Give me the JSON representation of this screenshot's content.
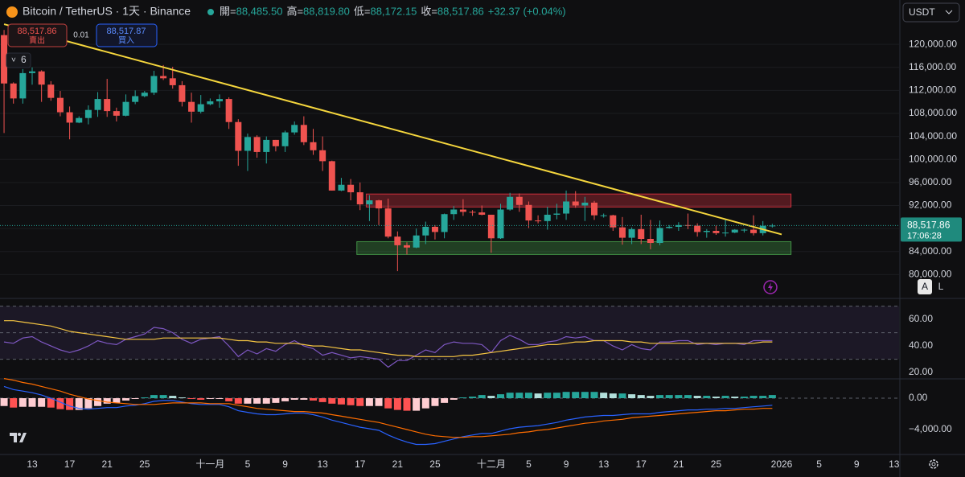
{
  "header": {
    "title": "Bitcoin / TetherUS · 1天 · Binance",
    "ohlc": [
      {
        "label": "開=",
        "value": "88,485.50"
      },
      {
        "label": "高=",
        "value": "88,819.80"
      },
      {
        "label": "低=",
        "value": "88,172.15"
      },
      {
        "label": "收=",
        "value": "88,517.86"
      }
    ],
    "change": "+32.37 (+0.04%)"
  },
  "order_panel": {
    "sell_price": "88,517.86",
    "sell_label": "賣出",
    "quantity": "0.01",
    "buy_price": "88,517.87",
    "buy_label": "買入"
  },
  "indicator_count": "6",
  "currency": "USDT",
  "scale_buttons": [
    "A",
    "L"
  ],
  "chart_data": [
    {
      "type": "candlestick",
      "up_color": "#26a69a",
      "down_color": "#ef5350",
      "categories": [
        null,
        null,
        null,
        "13",
        null,
        null,
        null,
        "17",
        null,
        null,
        null,
        "21",
        null,
        null,
        null,
        "25",
        null,
        null,
        null,
        null,
        null,
        null,
        "十一月",
        null,
        null,
        null,
        "5",
        null,
        null,
        null,
        "9",
        null,
        null,
        null,
        "13",
        null,
        null,
        null,
        "17",
        null,
        null,
        null,
        "21",
        null,
        null,
        null,
        "25",
        null,
        null,
        null,
        null,
        null,
        "十二月",
        null,
        null,
        null,
        "5",
        null,
        null,
        null,
        "9",
        null,
        null,
        null,
        "13",
        null,
        null,
        null,
        "17",
        null,
        null,
        null,
        "21",
        null,
        null,
        null,
        "25",
        null,
        null,
        null,
        null,
        null,
        null,
        "2026",
        null,
        null,
        null,
        "5",
        null,
        null,
        null,
        "9",
        null,
        null,
        null,
        "13"
      ],
      "open": [
        121600,
        113200,
        110600,
        115000,
        115300,
        113000,
        110700,
        108200,
        106400,
        107200,
        108600,
        110500,
        108400,
        107600,
        110000,
        111000,
        111600,
        114500,
        114100,
        112900,
        110000,
        108300,
        109600,
        110100,
        110500,
        106500,
        101500,
        103900,
        101300,
        103400,
        102300,
        104700,
        106000,
        103000,
        101600,
        99700,
        94600,
        95600,
        94300,
        92200,
        92900,
        91500,
        86600,
        85100,
        84700,
        86800,
        88300,
        87400,
        90500,
        91300,
        90900,
        90800,
        90400,
        86300,
        91300,
        93500,
        92100,
        89400,
        89300,
        90400,
        90600,
        92700,
        92000,
        92500,
        90300,
        90300,
        88200,
        86400,
        87900,
        86200,
        85500,
        88100,
        88300,
        88600,
        88500,
        87400,
        87600,
        87200,
        87300,
        87800,
        87800,
        87200,
        88485.5,
        null,
        null,
        null,
        null,
        null,
        null,
        null,
        null,
        null,
        null,
        null,
        null,
        null
      ],
      "high": [
        122500,
        113400,
        115700,
        116000,
        115500,
        113600,
        111900,
        109200,
        107500,
        109400,
        111700,
        114000,
        109000,
        111300,
        112000,
        111900,
        115400,
        116400,
        116100,
        113600,
        111600,
        111200,
        110600,
        111300,
        110800,
        107000,
        104500,
        104200,
        104000,
        103400,
        105000,
        106600,
        107500,
        105300,
        104000,
        99800,
        96800,
        96600,
        96000,
        93800,
        93000,
        93200,
        87500,
        85600,
        88000,
        89200,
        88600,
        90600,
        91900,
        93100,
        91200,
        92000,
        90400,
        92300,
        94200,
        94100,
        92700,
        90300,
        91800,
        92300,
        94600,
        94500,
        93500,
        92800,
        90600,
        90400,
        90000,
        88200,
        90400,
        89500,
        89400,
        88600,
        89100,
        90600,
        88900,
        87900,
        88500,
        89500,
        87900,
        88000,
        90300,
        89300,
        88819.8,
        null,
        null,
        null,
        null,
        null,
        null,
        null,
        null,
        null,
        null,
        null,
        null,
        null
      ],
      "low": [
        104600,
        109700,
        109700,
        113000,
        110000,
        110200,
        107500,
        103500,
        106300,
        106100,
        107400,
        107400,
        106600,
        107500,
        109600,
        110800,
        111200,
        113800,
        112300,
        109200,
        106400,
        108000,
        109400,
        109000,
        105300,
        98900,
        98000,
        100300,
        99300,
        101400,
        101300,
        104300,
        102500,
        100800,
        98000,
        94600,
        94500,
        92900,
        91200,
        89300,
        88600,
        86300,
        80600,
        83500,
        84600,
        85300,
        86100,
        86300,
        89500,
        90200,
        90200,
        90300,
        83800,
        86200,
        91100,
        90900,
        88100,
        88900,
        87800,
        89600,
        89500,
        91600,
        89300,
        89500,
        89900,
        87600,
        85200,
        85300,
        85300,
        84400,
        85100,
        88000,
        87600,
        87900,
        86600,
        86400,
        86900,
        86600,
        87200,
        87300,
        86800,
        86800,
        88172.15,
        null,
        null,
        null,
        null,
        null,
        null,
        null,
        null,
        null,
        null,
        null,
        null,
        null
      ],
      "close": [
        113200,
        110600,
        115000,
        115300,
        113000,
        110700,
        108200,
        106400,
        107200,
        108600,
        110500,
        108400,
        107600,
        110000,
        111000,
        111600,
        114500,
        114100,
        112900,
        110000,
        108300,
        109600,
        110100,
        110500,
        106500,
        101500,
        103900,
        101300,
        103400,
        102300,
        104700,
        106000,
        103000,
        101600,
        99700,
        94600,
        95600,
        94300,
        92200,
        92900,
        91500,
        86600,
        85100,
        84700,
        86800,
        88300,
        87400,
        90500,
        91300,
        90900,
        90800,
        90400,
        86300,
        91300,
        93500,
        92100,
        89400,
        89300,
        90400,
        90600,
        92700,
        92000,
        92500,
        90300,
        90300,
        88200,
        86400,
        87900,
        86200,
        85500,
        88100,
        88300,
        88600,
        88500,
        87400,
        87600,
        87200,
        87300,
        87800,
        87800,
        87200,
        88485.5,
        88517.86,
        null,
        null,
        null,
        null,
        null,
        null,
        null,
        null,
        null,
        null,
        null,
        null,
        null
      ],
      "ylim": [
        76000,
        127700
      ],
      "yticks": [
        {
          "value": 80000,
          "label": "80,000.00"
        },
        {
          "value": 84000,
          "label": "84,000.00"
        },
        {
          "value": 88000,
          "label": "88,000.00"
        },
        {
          "value": 92000,
          "label": "92,000.00"
        },
        {
          "value": 96000,
          "label": "96,000.00"
        },
        {
          "value": 100000,
          "label": "100,000.00"
        },
        {
          "value": 104000,
          "label": "104,000.00"
        },
        {
          "value": 108000,
          "label": "108,000.00"
        },
        {
          "value": 112000,
          "label": "112,000.00"
        },
        {
          "value": 116000,
          "label": "116,000.00"
        },
        {
          "value": 120000,
          "label": "120,000.00"
        }
      ],
      "last_price": {
        "value": 88517.86,
        "label": "88,517.86",
        "time": "17:06:28"
      },
      "trendline": {
        "color": "#f5d63d",
        "points": [
          {
            "index": 0,
            "price": 123500
          },
          {
            "index": 83,
            "price": 86980
          }
        ]
      },
      "zones": [
        {
          "from": 39,
          "to": 84,
          "top": 94000,
          "bottom": 91740,
          "color": "#f23645"
        },
        {
          "from": 38,
          "to": 84,
          "top": 85720,
          "bottom": 83490,
          "color": "#4caf50"
        }
      ]
    },
    {
      "type": "line",
      "ylim": [
        15.8,
        75.2
      ],
      "levels": [
        70,
        50,
        30
      ],
      "yticks": [
        {
          "value": 20,
          "label": "20.00"
        },
        {
          "value": 40,
          "label": "40.00"
        },
        {
          "value": 60,
          "label": "60.00"
        }
      ],
      "series": [
        {
          "name": "RSI",
          "color": "#7e57c2",
          "values": [
            43,
            42,
            46,
            47,
            43,
            40,
            37,
            35,
            37,
            40,
            44,
            42,
            41,
            45,
            47,
            49,
            54,
            53,
            50,
            45,
            42,
            45,
            46,
            47,
            40,
            32,
            37,
            34,
            38,
            36,
            41,
            44,
            40,
            38,
            33,
            35,
            33,
            31,
            32,
            31,
            30,
            24,
            29,
            29,
            33,
            37,
            35,
            41,
            43,
            42,
            42,
            41,
            35,
            44,
            48,
            45,
            41,
            41,
            43,
            44,
            47,
            46,
            47,
            44,
            44,
            40,
            37,
            41,
            38,
            37,
            43,
            43,
            44,
            44,
            41,
            42,
            41,
            42,
            42,
            41,
            44,
            44,
            44,
            null,
            null,
            null,
            null,
            null,
            null,
            null,
            null,
            null,
            null,
            null,
            null,
            null
          ]
        },
        {
          "name": "RSI MA",
          "color": "#f5c542",
          "values": [
            59,
            59,
            58,
            57,
            56,
            55,
            53,
            51,
            50,
            49,
            48,
            47,
            46,
            45,
            45,
            45,
            45,
            46,
            46,
            46,
            46,
            46,
            46,
            46,
            45,
            44,
            44,
            43,
            43,
            42,
            42,
            42,
            41,
            40,
            40,
            39,
            38,
            37,
            37,
            36,
            35,
            34,
            33,
            33,
            32,
            32,
            32,
            32,
            32,
            33,
            33,
            34,
            35,
            36,
            37,
            38,
            39,
            40,
            41,
            41,
            42,
            43,
            43,
            44,
            44,
            44,
            44,
            43,
            43,
            42,
            42,
            42,
            42,
            42,
            42,
            42,
            42,
            42,
            42,
            42,
            42,
            43,
            43,
            null,
            null,
            null,
            null,
            null,
            null,
            null,
            null,
            null,
            null,
            null,
            null,
            null
          ]
        }
      ]
    },
    {
      "type": "macd",
      "ylim": [
        -7180,
        2360
      ],
      "yticks": [
        {
          "value": -4000,
          "label": "−4,000.00"
        },
        {
          "value": 0,
          "label": "0.00"
        }
      ],
      "series": [
        {
          "name": "Histogram",
          "colors": [
            "#26a69a",
            "#b2dfdb",
            "#ff5252",
            "#ffcdd2"
          ],
          "values": [
            -1000,
            -1200,
            -1100,
            -1100,
            -1100,
            -1200,
            -1400,
            -1500,
            -1500,
            -1300,
            -1000,
            -700,
            -600,
            -300,
            -100,
            100,
            400,
            400,
            300,
            100,
            -100,
            -200,
            -100,
            -100,
            -400,
            -700,
            -700,
            -700,
            -700,
            -600,
            -400,
            -200,
            -200,
            -300,
            -500,
            -700,
            -800,
            -900,
            -1000,
            -1000,
            -1000,
            -1300,
            -1500,
            -1600,
            -1600,
            -1300,
            -1000,
            -600,
            -200,
            100,
            200,
            400,
            300,
            500,
            700,
            700,
            700,
            600,
            700,
            700,
            800,
            800,
            800,
            800,
            700,
            600,
            600,
            500,
            400,
            300,
            400,
            400,
            400,
            400,
            300,
            300,
            200,
            300,
            200,
            200,
            300,
            300,
            400,
            null,
            null,
            null,
            null,
            null,
            null,
            null,
            null,
            null,
            null,
            null,
            null,
            null
          ]
        },
        {
          "name": "MACD",
          "color": "#2962ff",
          "values": [
            1500,
            1100,
            900,
            700,
            400,
            0,
            -500,
            -1000,
            -1300,
            -1400,
            -1300,
            -1200,
            -1200,
            -1000,
            -900,
            -700,
            -400,
            -300,
            -300,
            -500,
            -700,
            -800,
            -800,
            -800,
            -1100,
            -1600,
            -1800,
            -2000,
            -2100,
            -2100,
            -2000,
            -1900,
            -1900,
            -2100,
            -2400,
            -2800,
            -3100,
            -3400,
            -3700,
            -3900,
            -4100,
            -4700,
            -5200,
            -5600,
            -5900,
            -5900,
            -5800,
            -5500,
            -5200,
            -4900,
            -4700,
            -4500,
            -4500,
            -4200,
            -3900,
            -3700,
            -3600,
            -3500,
            -3300,
            -3100,
            -2800,
            -2600,
            -2400,
            -2300,
            -2200,
            -2200,
            -2100,
            -2000,
            -2000,
            -2000,
            -1800,
            -1700,
            -1600,
            -1500,
            -1500,
            -1400,
            -1400,
            -1300,
            -1300,
            -1200,
            -1100,
            -1000,
            -900,
            null,
            null,
            null,
            null,
            null,
            null,
            null,
            null,
            null,
            null,
            null,
            null,
            null
          ]
        },
        {
          "name": "Signal",
          "color": "#ff6d00",
          "values": [
            2500,
            2300,
            2000,
            1800,
            1500,
            1200,
            900,
            500,
            200,
            -100,
            -300,
            -500,
            -600,
            -700,
            -800,
            -800,
            -800,
            -700,
            -600,
            -600,
            -600,
            -600,
            -700,
            -700,
            -700,
            -900,
            -1100,
            -1300,
            -1400,
            -1500,
            -1600,
            -1700,
            -1700,
            -1800,
            -1900,
            -2100,
            -2300,
            -2500,
            -2700,
            -2900,
            -3100,
            -3400,
            -3700,
            -4000,
            -4300,
            -4600,
            -4800,
            -4900,
            -5000,
            -5000,
            -4900,
            -4900,
            -4800,
            -4700,
            -4600,
            -4400,
            -4300,
            -4100,
            -4000,
            -3800,
            -3600,
            -3400,
            -3200,
            -3100,
            -2900,
            -2800,
            -2700,
            -2500,
            -2400,
            -2300,
            -2200,
            -2100,
            -2000,
            -1900,
            -1800,
            -1700,
            -1600,
            -1600,
            -1500,
            -1400,
            -1400,
            -1300,
            -1300,
            null,
            null,
            null,
            null,
            null,
            null,
            null,
            null,
            null,
            null,
            null,
            null,
            null
          ]
        }
      ]
    }
  ]
}
